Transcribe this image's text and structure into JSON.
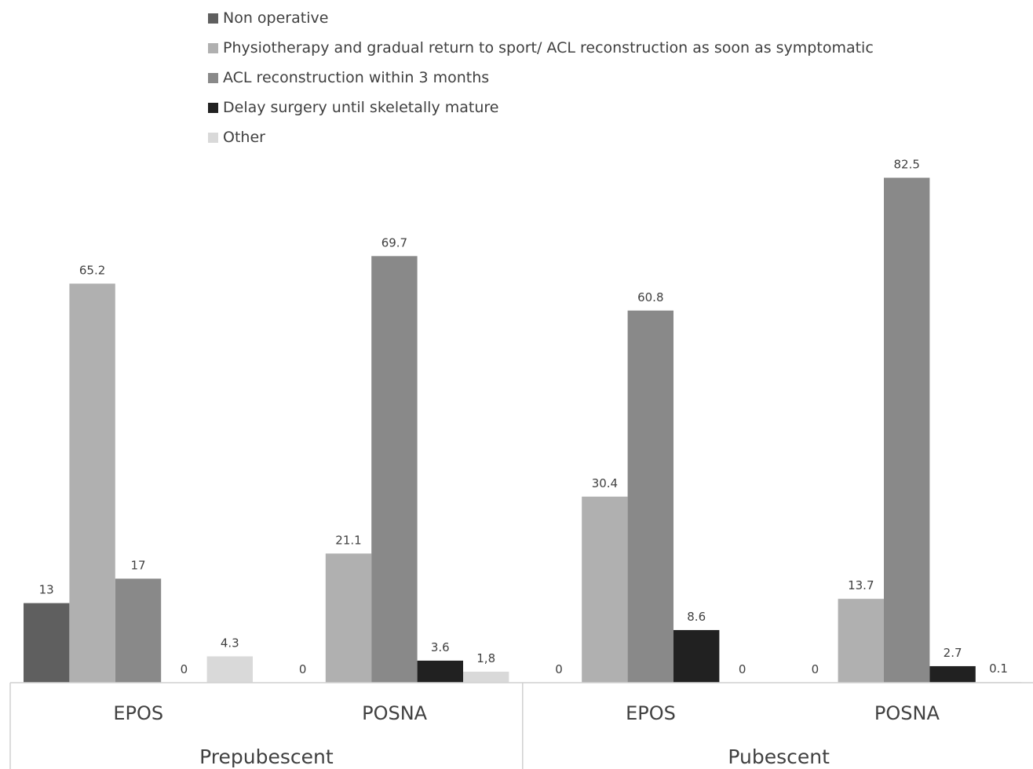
{
  "chart_data": {
    "type": "bar",
    "groups": [
      {
        "category": "Prepubescent",
        "subgroups": [
          {
            "name": "EPOS",
            "values": [
              13,
              65.2,
              17,
              0,
              4.3
            ],
            "value_labels": [
              "13",
              "65.2",
              "17",
              "0",
              "4.3"
            ]
          },
          {
            "name": "POSNA",
            "values": [
              0,
              21.1,
              69.7,
              3.6,
              1.8
            ],
            "value_labels": [
              "0",
              "21.1",
              "69.7",
              "3.6",
              "1,8"
            ]
          }
        ]
      },
      {
        "category": "Pubescent",
        "subgroups": [
          {
            "name": "EPOS",
            "values": [
              0,
              30.4,
              60.8,
              8.6,
              0
            ],
            "value_labels": [
              "0",
              "30.4",
              "60.8",
              "8.6",
              "0"
            ]
          },
          {
            "name": "POSNA",
            "values": [
              0,
              13.7,
              82.5,
              2.7,
              0.1
            ],
            "value_labels": [
              "0",
              "13.7",
              "82.5",
              "2.7",
              "0.1"
            ]
          }
        ]
      }
    ],
    "series": [
      {
        "name": "Non operative",
        "color": "#5f5f5f"
      },
      {
        "name": "Physiotherapy and gradual return to sport/ ACL reconstruction as soon as symptomatic",
        "color": "#b0b0b0"
      },
      {
        "name": "ACL reconstruction within 3 months",
        "color": "#898989"
      },
      {
        "name": "Delay surgery until skeletally mature",
        "color": "#212121"
      },
      {
        "name": "Other",
        "color": "#d9d9d9"
      }
    ],
    "ylim": [
      0,
      100
    ],
    "grid": false,
    "legend_position": "top-left",
    "title": "",
    "xlabel": "",
    "ylabel": ""
  }
}
